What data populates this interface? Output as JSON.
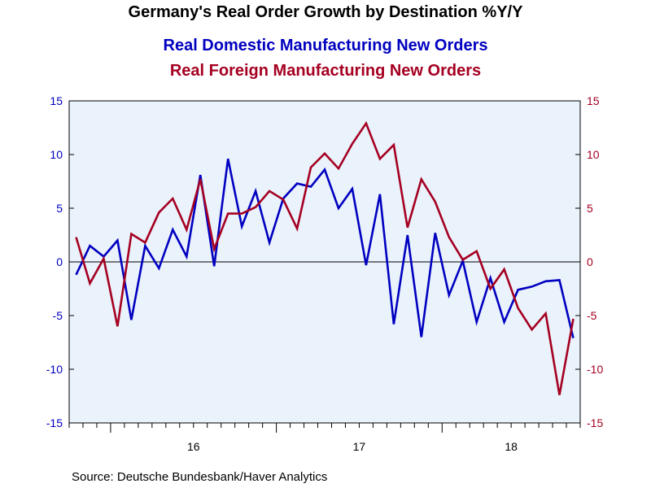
{
  "title": "Germany's Real Order Growth by Destination %Y/Y",
  "source": "Source:  Deutsche Bundesbank/Haver Analytics",
  "colors": {
    "domestic": "#0000c0",
    "foreign": "#a50021",
    "plot_background": "#eaf2fc",
    "axis": "#000000"
  },
  "chart_data": {
    "type": "line",
    "y_left_ticks": [
      "15",
      "10",
      "5",
      "0",
      "-5",
      "-10",
      "-15"
    ],
    "y_right_ticks": [
      "15",
      "10",
      "5",
      "0",
      "-5",
      "-10",
      "-15"
    ],
    "x_year_labels": [
      "16",
      "17",
      "18"
    ],
    "ylim": [
      -15,
      15
    ],
    "x": [
      "2015-10",
      "2015-11",
      "2015-12",
      "2016-01",
      "2016-02",
      "2016-03",
      "2016-04",
      "2016-05",
      "2016-06",
      "2016-07",
      "2016-08",
      "2016-09",
      "2016-10",
      "2016-11",
      "2016-12",
      "2017-01",
      "2017-02",
      "2017-03",
      "2017-04",
      "2017-05",
      "2017-06",
      "2017-07",
      "2017-08",
      "2017-09",
      "2017-10",
      "2017-11",
      "2017-12",
      "2018-01",
      "2018-02",
      "2018-03",
      "2018-04",
      "2018-05",
      "2018-06",
      "2018-07",
      "2018-08",
      "2018-09",
      "2018-10"
    ],
    "series": [
      {
        "name": "Real Domestic Manufacturing New Orders",
        "values": [
          -1.2,
          1.5,
          0.5,
          2.0,
          -5.4,
          1.5,
          -0.6,
          3.0,
          0.5,
          8.1,
          -0.4,
          9.6,
          3.3,
          6.6,
          1.8,
          5.9,
          7.3,
          7.0,
          8.6,
          5.0,
          6.8,
          -0.3,
          6.3,
          -5.8,
          2.5,
          -7.0,
          2.7,
          -3.1,
          0.1,
          -5.6,
          -1.5,
          -5.6,
          -2.6,
          -2.3,
          -1.8,
          -1.7,
          -7.1
        ]
      },
      {
        "name": "Real Foreign Manufacturing New Orders",
        "values": [
          2.3,
          -2.0,
          0.3,
          -6.0,
          2.6,
          1.8,
          4.6,
          5.9,
          3.0,
          7.7,
          1.2,
          4.5,
          4.5,
          5.1,
          6.6,
          5.8,
          3.1,
          8.8,
          10.1,
          8.7,
          11.0,
          12.9,
          9.6,
          10.9,
          3.2,
          7.7,
          5.6,
          2.3,
          0.2,
          1.0,
          -2.5,
          -0.7,
          -4.3,
          -6.3,
          -4.8,
          -12.4,
          -5.3
        ]
      }
    ]
  }
}
